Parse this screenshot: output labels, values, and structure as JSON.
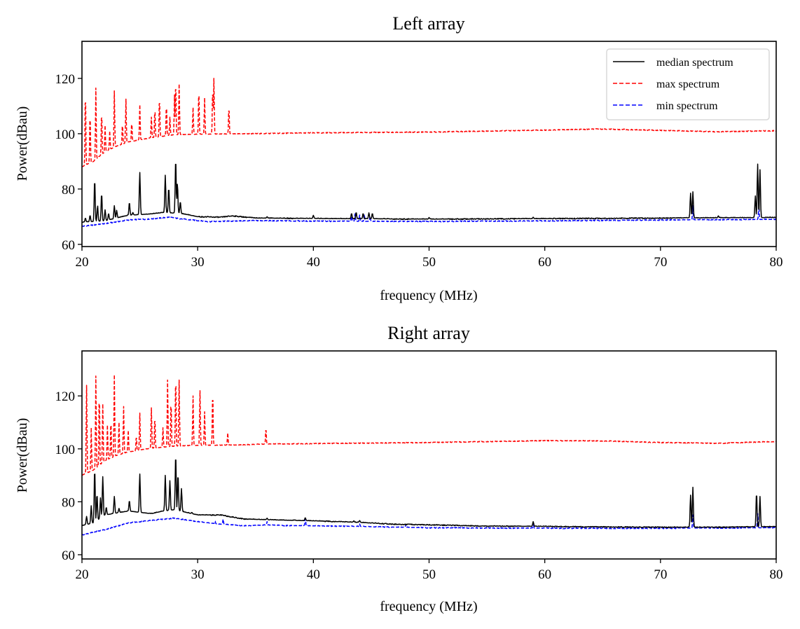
{
  "chart_data": [
    {
      "type": "line",
      "title": "Left array",
      "xlabel": "frequency (MHz)",
      "ylabel": "Power(dBau)",
      "xlim": [
        20,
        80
      ],
      "ylim": [
        59.2,
        133.4
      ],
      "xticks": [
        20,
        30,
        40,
        50,
        60,
        70,
        80
      ],
      "yticks": [
        60,
        80,
        100,
        120
      ],
      "grid": false,
      "legend": {
        "placement": "top-right",
        "entries": [
          "median spectrum",
          "max spectrum",
          "min spectrum"
        ]
      },
      "series": [
        {
          "name": "median spectrum",
          "color": "#000000",
          "style": "solid",
          "baseline": [
            [
              20,
              68
            ],
            [
              22,
              68.5
            ],
            [
              24,
              70.5
            ],
            [
              26,
              71
            ],
            [
              27,
              71.5
            ],
            [
              28.5,
              71.2
            ],
            [
              30,
              70
            ],
            [
              32,
              69.8
            ],
            [
              33,
              70.3
            ],
            [
              35,
              69.5
            ],
            [
              38,
              69.4
            ],
            [
              42,
              69.3
            ],
            [
              46,
              69.2
            ],
            [
              50,
              69.1
            ],
            [
              60,
              69.3
            ],
            [
              70,
              69.5
            ],
            [
              80,
              69.7
            ]
          ],
          "peaks": [
            [
              20.3,
              69.5
            ],
            [
              20.7,
              70.5
            ],
            [
              21.1,
              83.5
            ],
            [
              21.35,
              74
            ],
            [
              21.7,
              78.5
            ],
            [
              22.0,
              72.5
            ],
            [
              22.3,
              71.2
            ],
            [
              22.8,
              74
            ],
            [
              23.0,
              72.3
            ],
            [
              24.1,
              75.2
            ],
            [
              24.4,
              71.5
            ],
            [
              25.0,
              86
            ],
            [
              27.2,
              85
            ],
            [
              27.5,
              80.5
            ],
            [
              28.1,
              91
            ],
            [
              28.25,
              82
            ],
            [
              28.5,
              75.5
            ],
            [
              36,
              70
            ],
            [
              40,
              70.5
            ],
            [
              43.3,
              71.2
            ],
            [
              43.7,
              71.6
            ],
            [
              44.3,
              71.2
            ],
            [
              44.8,
              71.4
            ],
            [
              45.1,
              71.2
            ],
            [
              50,
              69.7
            ],
            [
              59,
              69.8
            ],
            [
              72.6,
              78.5
            ],
            [
              72.8,
              79
            ],
            [
              75,
              70.3
            ],
            [
              78.2,
              77.5
            ],
            [
              78.4,
              89
            ],
            [
              78.6,
              87
            ]
          ]
        },
        {
          "name": "max spectrum",
          "color": "#ff0000",
          "style": "dashed",
          "baseline": [
            [
              20,
              88
            ],
            [
              21,
              90
            ],
            [
              22,
              93.5
            ],
            [
              23,
              95.5
            ],
            [
              24,
              97
            ],
            [
              26,
              98.5
            ],
            [
              28,
              99.6
            ],
            [
              30,
              99.8
            ],
            [
              33,
              99.9
            ],
            [
              40,
              100.3
            ],
            [
              50,
              100.6
            ],
            [
              60,
              101.3
            ],
            [
              65,
              101.7
            ],
            [
              70,
              101.2
            ],
            [
              75,
              100.7
            ],
            [
              80,
              101.1
            ]
          ],
          "peaks": [
            [
              20.3,
              116
            ],
            [
              20.7,
              108
            ],
            [
              21.2,
              116.5
            ],
            [
              21.7,
              108.5
            ],
            [
              22.0,
              103
            ],
            [
              22.4,
              101
            ],
            [
              22.8,
              115.5
            ],
            [
              23.5,
              104
            ],
            [
              23.8,
              112.5
            ],
            [
              24.3,
              104.5
            ],
            [
              25.0,
              110.5
            ],
            [
              26.0,
              106
            ],
            [
              26.3,
              109.5
            ],
            [
              26.7,
              113.5
            ],
            [
              27.3,
              111
            ],
            [
              27.6,
              106
            ],
            [
              28.0,
              114
            ],
            [
              28.1,
              119.5
            ],
            [
              28.4,
              118
            ],
            [
              29.6,
              109.5
            ],
            [
              30.1,
              116.5
            ],
            [
              30.6,
              113
            ],
            [
              31.3,
              117
            ],
            [
              31.4,
              120
            ],
            [
              32.7,
              110
            ]
          ]
        },
        {
          "name": "min spectrum",
          "color": "#0000ff",
          "style": "dashed",
          "baseline": [
            [
              20,
              66.5
            ],
            [
              22,
              67.5
            ],
            [
              24,
              68.8
            ],
            [
              26,
              69.2
            ],
            [
              27.5,
              69.8
            ],
            [
              29,
              69
            ],
            [
              31,
              68.2
            ],
            [
              35,
              68.6
            ],
            [
              40,
              68.4
            ],
            [
              45,
              68.3
            ],
            [
              50,
              68.3
            ],
            [
              60,
              68.5
            ],
            [
              70,
              68.8
            ],
            [
              80,
              69
            ]
          ],
          "peaks": [
            [
              43.3,
              70.5
            ],
            [
              43.6,
              71
            ],
            [
              44.0,
              70.6
            ],
            [
              44.4,
              70.8
            ],
            [
              44.9,
              70.5
            ],
            [
              72.8,
              74
            ],
            [
              78.5,
              73.5
            ]
          ]
        }
      ]
    },
    {
      "type": "line",
      "title": "Right array",
      "xlabel": "frequency (MHz)",
      "ylabel": "Power(dBau)",
      "xlim": [
        20,
        80
      ],
      "ylim": [
        58.4,
        137
      ],
      "xticks": [
        20,
        30,
        40,
        50,
        60,
        70,
        80
      ],
      "yticks": [
        60,
        80,
        100,
        120
      ],
      "grid": false,
      "legend": null,
      "series": [
        {
          "name": "median spectrum",
          "color": "#000000",
          "style": "solid",
          "baseline": [
            [
              20,
              71
            ],
            [
              21,
              72
            ],
            [
              22,
              75
            ],
            [
              24,
              76.5
            ],
            [
              25,
              76
            ],
            [
              26,
              75.5
            ],
            [
              27,
              76.5
            ],
            [
              28,
              77
            ],
            [
              29,
              76
            ],
            [
              30,
              75
            ],
            [
              32,
              75
            ],
            [
              34,
              73.5
            ],
            [
              36,
              73.2
            ],
            [
              40,
              72.8
            ],
            [
              44,
              72.2
            ],
            [
              47,
              71.5
            ],
            [
              50,
              71.3
            ],
            [
              55,
              70.8
            ],
            [
              60,
              70.7
            ],
            [
              65,
              70.5
            ],
            [
              70,
              70.4
            ],
            [
              75,
              70.4
            ],
            [
              80,
              70.6
            ]
          ],
          "peaks": [
            [
              20.4,
              74.5
            ],
            [
              20.8,
              78.5
            ],
            [
              21.1,
              92.5
            ],
            [
              21.3,
              83
            ],
            [
              21.6,
              81.5
            ],
            [
              21.8,
              89.5
            ],
            [
              22.1,
              78
            ],
            [
              22.8,
              82
            ],
            [
              23.2,
              77.5
            ],
            [
              24.1,
              80.5
            ],
            [
              25.0,
              90.5
            ],
            [
              27.2,
              90
            ],
            [
              27.6,
              88
            ],
            [
              28.1,
              98
            ],
            [
              28.3,
              90.5
            ],
            [
              28.6,
              85
            ],
            [
              29.5,
              76
            ],
            [
              36,
              73.8
            ],
            [
              39.3,
              74
            ],
            [
              43.5,
              72.8
            ],
            [
              44,
              72.9
            ],
            [
              59,
              72.5
            ],
            [
              72.6,
              82.5
            ],
            [
              72.8,
              85.5
            ],
            [
              78.3,
              83.5
            ],
            [
              78.6,
              82
            ]
          ]
        },
        {
          "name": "max spectrum",
          "color": "#ff0000",
          "style": "dashed",
          "baseline": [
            [
              20,
              90
            ],
            [
              21,
              92
            ],
            [
              22,
              95.5
            ],
            [
              23,
              97.5
            ],
            [
              24,
              98.8
            ],
            [
              26,
              100.2
            ],
            [
              28,
              101
            ],
            [
              30,
              101.3
            ],
            [
              33,
              101.4
            ],
            [
              36,
              101.8
            ],
            [
              40,
              102
            ],
            [
              50,
              102.4
            ],
            [
              60,
              103.1
            ],
            [
              65,
              103
            ],
            [
              70,
              102.4
            ],
            [
              75,
              102.1
            ],
            [
              80,
              102.8
            ]
          ],
          "peaks": [
            [
              20.4,
              124
            ],
            [
              20.8,
              108
            ],
            [
              21.2,
              127.5
            ],
            [
              21.5,
              122
            ],
            [
              21.8,
              117
            ],
            [
              22.2,
              109
            ],
            [
              22.5,
              111.5
            ],
            [
              22.8,
              128
            ],
            [
              23.2,
              110
            ],
            [
              23.6,
              116
            ],
            [
              24.0,
              107
            ],
            [
              24.7,
              105
            ],
            [
              25.0,
              113.5
            ],
            [
              26.0,
              115.5
            ],
            [
              26.3,
              112.5
            ],
            [
              27.0,
              108
            ],
            [
              27.4,
              126
            ],
            [
              27.7,
              119
            ],
            [
              28.1,
              128.5
            ],
            [
              28.4,
              126
            ],
            [
              29.6,
              120
            ],
            [
              30.2,
              122
            ],
            [
              30.6,
              114
            ],
            [
              31.3,
              122
            ],
            [
              32.6,
              106
            ],
            [
              35.9,
              108
            ]
          ]
        },
        {
          "name": "min spectrum",
          "color": "#0000ff",
          "style": "dashed",
          "baseline": [
            [
              20,
              67.5
            ],
            [
              22,
              69.5
            ],
            [
              24,
              72
            ],
            [
              26,
              73
            ],
            [
              28,
              73.8
            ],
            [
              30,
              72.5
            ],
            [
              32,
              71.5
            ],
            [
              34,
              71
            ],
            [
              36,
              71.2
            ],
            [
              38,
              71
            ],
            [
              42,
              70.8
            ],
            [
              46,
              70.5
            ],
            [
              50,
              70.2
            ],
            [
              60,
              70
            ],
            [
              70,
              70
            ],
            [
              80,
              70.2
            ]
          ],
          "peaks": [
            [
              31.5,
              72.8
            ],
            [
              32.2,
              73.4
            ],
            [
              36,
              72.5
            ],
            [
              39.3,
              74
            ],
            [
              44,
              71.6
            ],
            [
              48,
              71.5
            ],
            [
              59,
              72.2
            ],
            [
              72.8,
              75
            ],
            [
              78.4,
              75.5
            ]
          ]
        }
      ]
    }
  ]
}
